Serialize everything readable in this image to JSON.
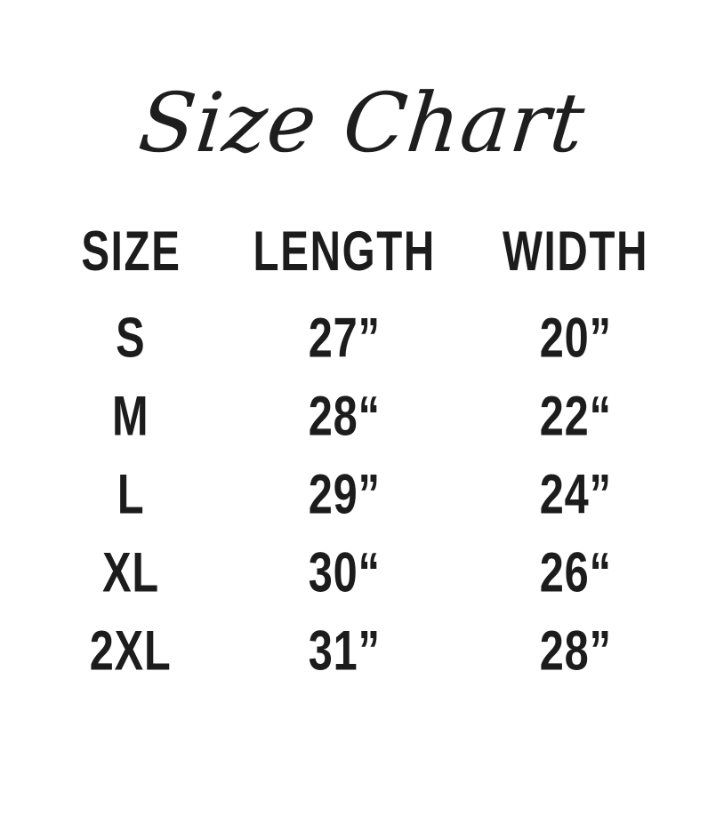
{
  "title": "Size Chart",
  "table": {
    "columns": {
      "size": "SIZE",
      "length": "LENGTH",
      "width": "WIDTH"
    },
    "rows": [
      {
        "size": "S",
        "length": "27”",
        "width": "20”"
      },
      {
        "size": "M",
        "length": "28“",
        "width": "22“"
      },
      {
        "size": "L",
        "length": "29”",
        "width": "24”"
      },
      {
        "size": "XL",
        "length": "30“",
        "width": "26“"
      },
      {
        "size": "2XL",
        "length": "31”",
        "width": "28”"
      }
    ]
  },
  "colors": {
    "background": "#ffffff",
    "text": "#1c1c1c"
  }
}
